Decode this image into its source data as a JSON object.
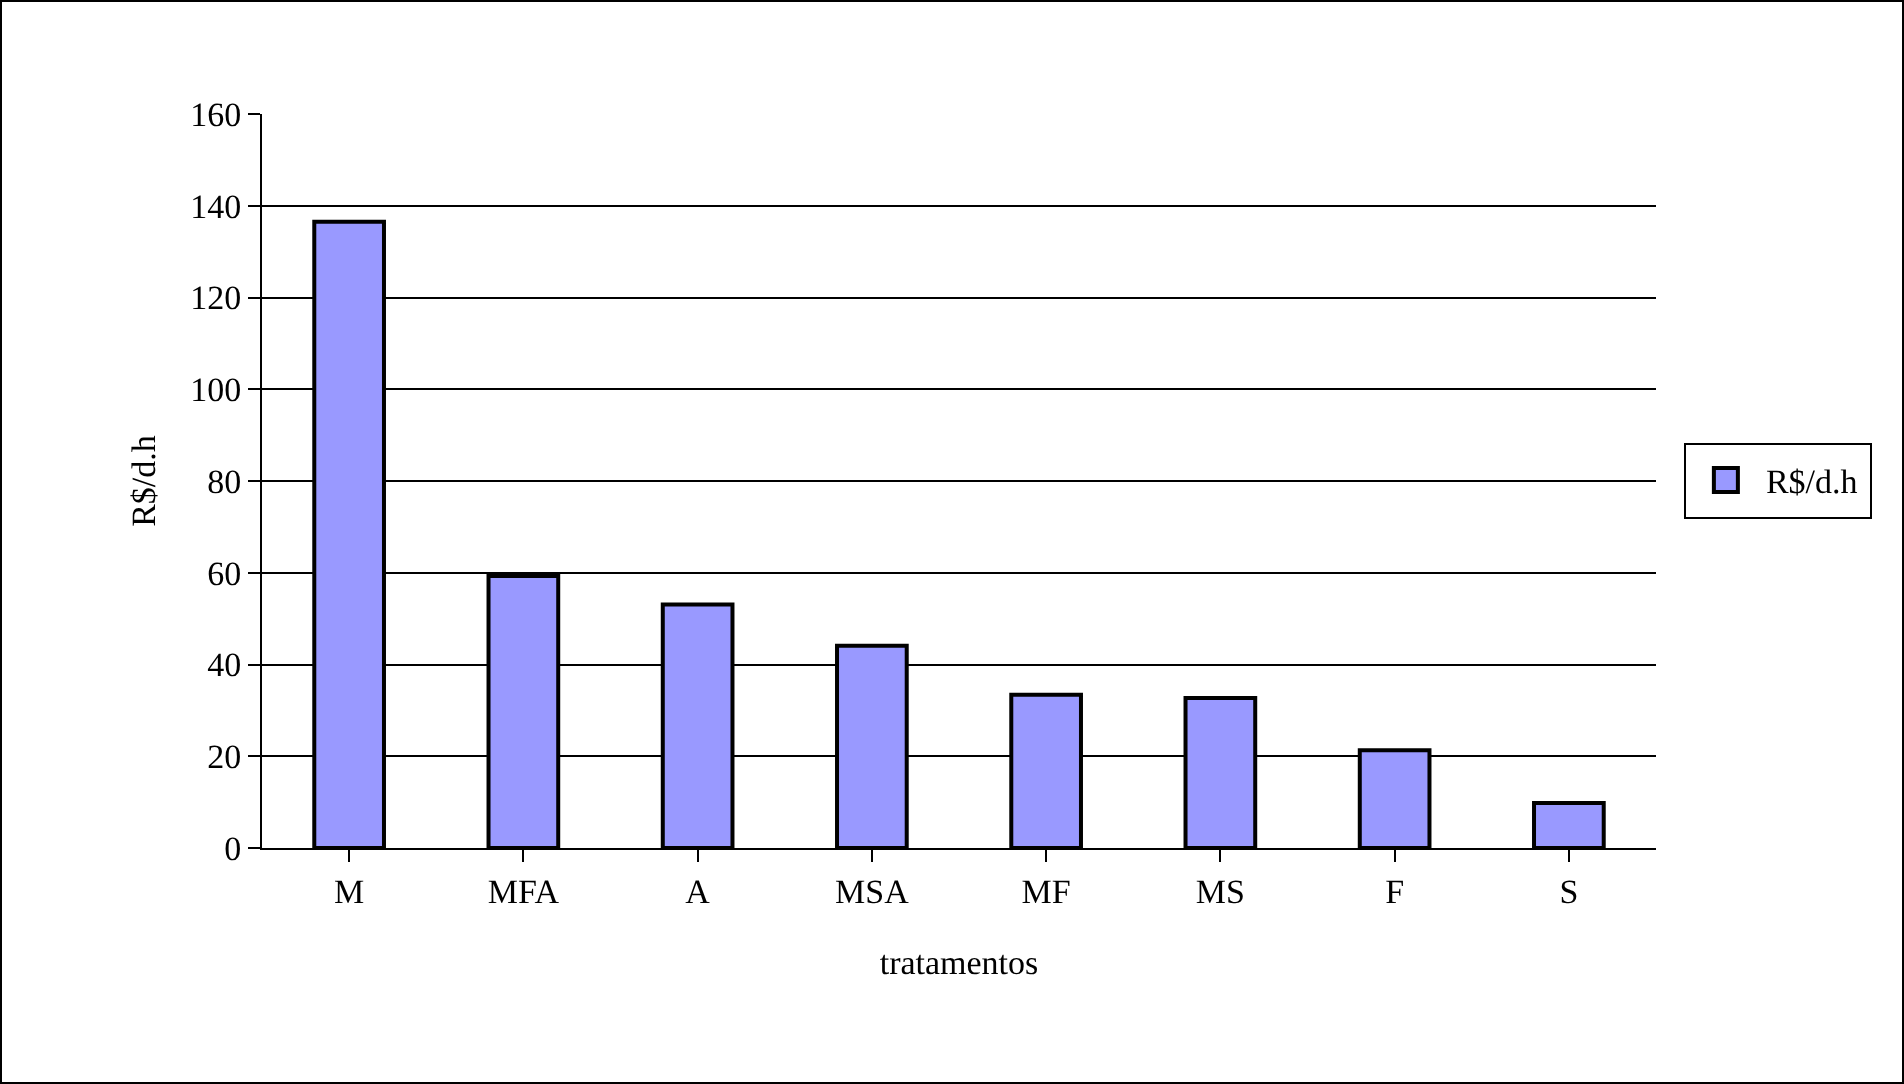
{
  "chart_data": {
    "type": "bar",
    "xlabel": "tratamentos",
    "ylabel": "R$/d.h",
    "categories": [
      "M",
      "MFA",
      "A",
      "MSA",
      "MF",
      "MS",
      "F",
      "S"
    ],
    "series": [
      {
        "name": "R$/d.h",
        "color": "#9999ff",
        "values": [
          136.5,
          59.3,
          53.1,
          44.1,
          33.4,
          32.7,
          21.3,
          9.8
        ]
      }
    ],
    "ylim": [
      0,
      160
    ],
    "yticks": [
      0,
      20,
      40,
      60,
      80,
      100,
      120,
      140,
      160
    ],
    "grid": "y",
    "legend": "right"
  }
}
